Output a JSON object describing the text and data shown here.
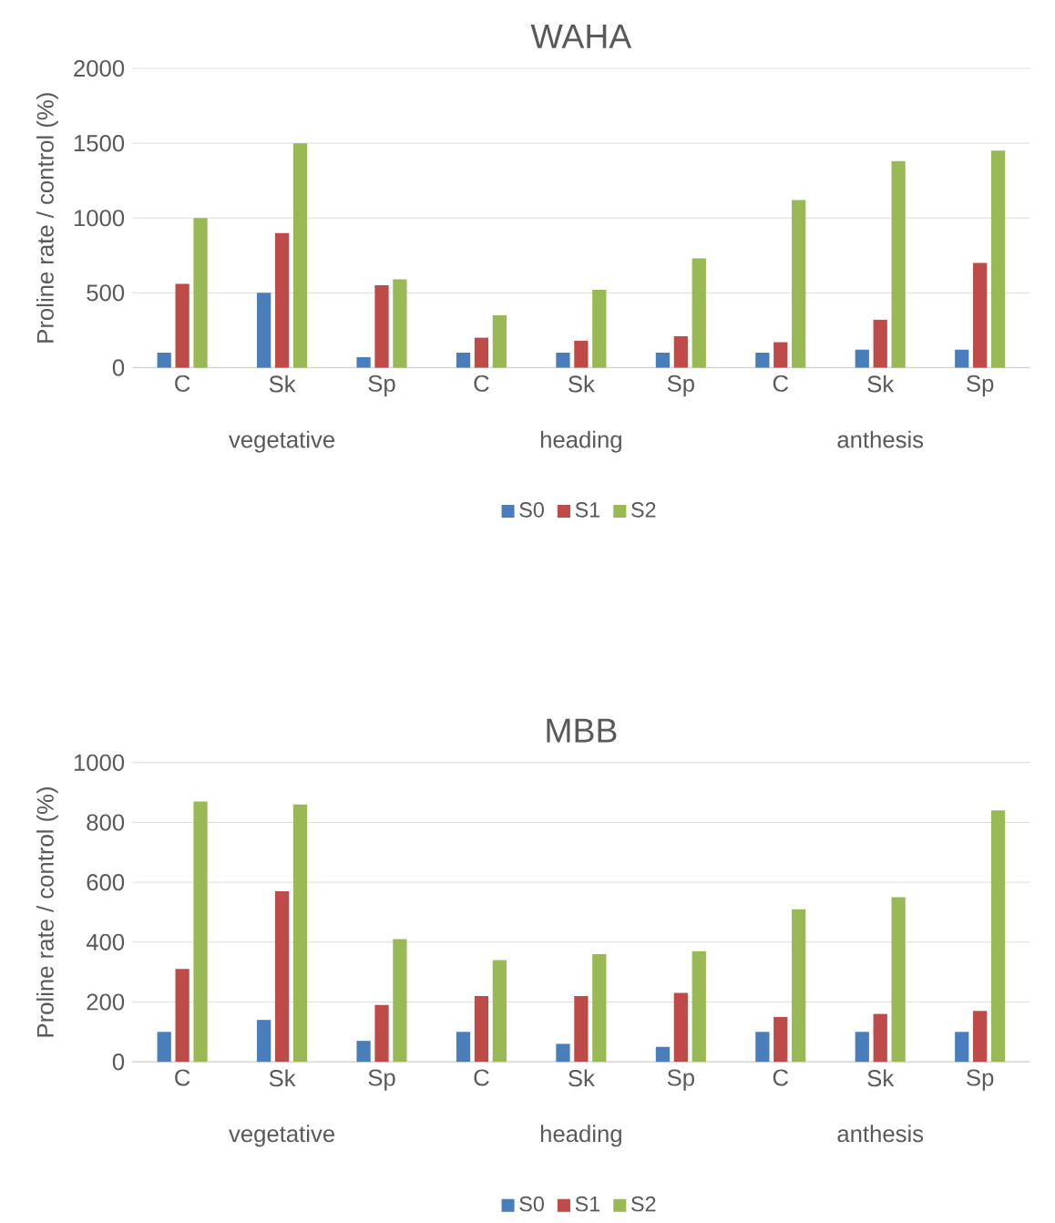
{
  "chart_data": [
    {
      "type": "bar",
      "title": "WAHA",
      "ylabel": "Proline rate / control  (%)",
      "categories": [
        "C",
        "Sk",
        "Sp",
        "C",
        "Sk",
        "Sp",
        "C",
        "Sk",
        "Sp"
      ],
      "annotations": [
        "vegetative",
        "heading",
        "anthesis"
      ],
      "series": [
        {
          "name": "S0",
          "color": "#4a7ebb",
          "values": [
            100,
            500,
            70,
            100,
            100,
            100,
            100,
            120,
            120
          ]
        },
        {
          "name": "S1",
          "color": "#be4b48",
          "values": [
            560,
            900,
            550,
            200,
            180,
            210,
            170,
            320,
            700
          ]
        },
        {
          "name": "S2",
          "color": "#98b954",
          "values": [
            1000,
            1500,
            590,
            350,
            520,
            730,
            1120,
            1380,
            1450
          ]
        }
      ],
      "ylim": [
        0,
        2000
      ],
      "yticks": [
        0,
        500,
        1000,
        1500,
        2000
      ],
      "grid": "y",
      "legend": "bottom"
    },
    {
      "type": "bar",
      "title": "MBB",
      "ylabel": "Proline rate / control  (%)",
      "categories": [
        "C",
        "Sk",
        "Sp",
        "C",
        "Sk",
        "Sp",
        "C",
        "Sk",
        "Sp"
      ],
      "annotations": [
        "vegetative",
        "heading",
        "anthesis"
      ],
      "series": [
        {
          "name": "S0",
          "color": "#4a7ebb",
          "values": [
            100,
            140,
            70,
            100,
            60,
            50,
            100,
            100,
            100
          ]
        },
        {
          "name": "S1",
          "color": "#be4b48",
          "values": [
            310,
            570,
            190,
            220,
            220,
            230,
            150,
            160,
            170
          ]
        },
        {
          "name": "S2",
          "color": "#98b954",
          "values": [
            870,
            860,
            410,
            340,
            360,
            370,
            510,
            550,
            840
          ]
        }
      ],
      "ylim": [
        0,
        1000
      ],
      "yticks": [
        0,
        200,
        400,
        600,
        800,
        1000
      ],
      "grid": "y",
      "legend": "bottom"
    }
  ]
}
